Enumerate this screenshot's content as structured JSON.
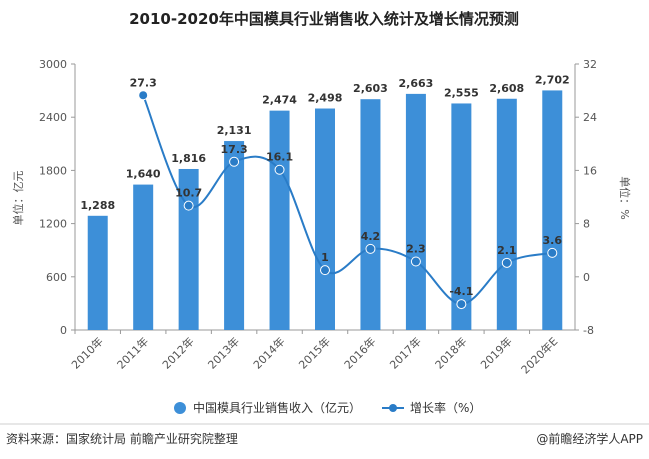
{
  "chart_data": {
    "type": "bar",
    "title": "2010-2020年中国模具行业销售收入统计及增长情况预测",
    "categories": [
      "2010年",
      "2011年",
      "2012年",
      "2013年",
      "2014年",
      "2015年",
      "2016年",
      "2017年",
      "2018年",
      "2019年",
      "2020年E"
    ],
    "series": [
      {
        "name": "中国模具行业销售收入（亿元）",
        "type": "bar",
        "axis": "left",
        "values": [
          1288,
          1640,
          1816,
          2131,
          2474,
          2498,
          2603,
          2663,
          2555,
          2608,
          2702
        ],
        "labels": [
          "1,288",
          "1,640",
          "1,816",
          "2,131",
          "2,474",
          "2,498",
          "2,603",
          "2,663",
          "2,555",
          "2,608",
          "2,702"
        ],
        "color": "#3d8fd8"
      },
      {
        "name": "增长率（%）",
        "type": "line",
        "axis": "right",
        "values": [
          null,
          27.3,
          10.7,
          17.3,
          16.1,
          1,
          4.2,
          2.3,
          -4.1,
          2.1,
          3.6
        ],
        "labels": [
          "",
          "27.3",
          "10.7",
          "17.3",
          "16.1",
          "1",
          "4.2",
          "2.3",
          "-4.1",
          "2.1",
          "3.6"
        ],
        "color": "#2a7cc7"
      }
    ],
    "ylabel_left": "单位：亿元",
    "ylabel_right": "单位：%",
    "ylim_left": [
      0,
      3000
    ],
    "yticks_left": [
      "0",
      "600",
      "1200",
      "1800",
      "2400",
      "3000"
    ],
    "ylim_right": [
      -8,
      32
    ],
    "yticks_right": [
      "-8",
      "0",
      "8",
      "16",
      "24",
      "32"
    ],
    "legend_position": "bottom",
    "grid": false
  },
  "footer": {
    "source": "资料来源：国家统计局 前瞻产业研究院整理",
    "brand": "@前瞻经济学人APP"
  }
}
